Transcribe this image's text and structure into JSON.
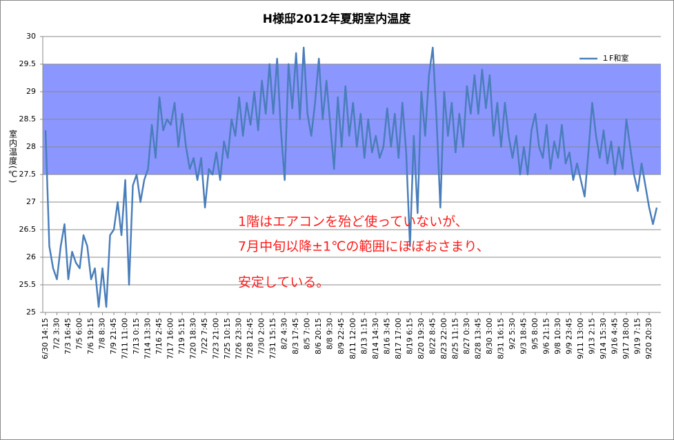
{
  "chart_data": {
    "type": "line",
    "title": "H様邸2012年夏期室内温度",
    "y_label": "室内温度(℃)",
    "annotations": [
      "1階はエアコンを殆ど使っていないが、",
      "7月中旬以降±1℃の範囲にほぼおさまり、",
      "安定している。"
    ],
    "legend_position": "top-right",
    "grid": true,
    "highlight_band": {
      "from": 27.5,
      "to": 29.5,
      "color": "#8c96ff"
    },
    "ylim": [
      25,
      30
    ],
    "yticks": [
      25,
      25.5,
      26,
      26.5,
      27,
      27.5,
      28,
      28.5,
      29,
      29.5,
      30
    ],
    "categories": [
      "6/30 14:15",
      null,
      null,
      "7/2 3:30",
      null,
      null,
      "7/3 16:45",
      null,
      null,
      "7/5 6:00",
      null,
      null,
      "7/6 19:15",
      null,
      null,
      "7/8 8:30",
      null,
      null,
      "7/9 21:45",
      null,
      null,
      "7/11 11:00",
      null,
      null,
      "7/13 0:15",
      null,
      null,
      "7/14 13:30",
      null,
      null,
      "7/16 2:45",
      null,
      null,
      "7/17 16:00",
      null,
      null,
      "7/19 5:15",
      null,
      null,
      "7/20 18:30",
      null,
      null,
      "7/22 7:45",
      null,
      null,
      "7/23 21:00",
      null,
      null,
      "7/25 10:15",
      null,
      null,
      "7/26 23:30",
      null,
      null,
      "7/28 12:45",
      null,
      null,
      "7/30 2:00",
      null,
      null,
      "7/31 15:15",
      null,
      null,
      "8/2 4:30",
      null,
      null,
      "8/3 17:45",
      null,
      null,
      "8/5 7:00",
      null,
      null,
      "8/6 20:15",
      null,
      null,
      "8/8 9:30",
      null,
      null,
      "8/9 22:45",
      null,
      null,
      "8/11 12:00",
      null,
      null,
      "8/13 1:15",
      null,
      null,
      "8/14 14:30",
      null,
      null,
      "8/16 3:45",
      null,
      null,
      "8/17 17:00",
      null,
      null,
      "8/19 6:15",
      null,
      null,
      "8/20 19:30",
      null,
      null,
      "8/22 8:45",
      null,
      null,
      "8/23 22:00",
      null,
      null,
      "8/25 11:15",
      null,
      null,
      "8/27 0:30",
      null,
      null,
      "8/28 13:45",
      null,
      null,
      "8/30 3:00",
      null,
      null,
      "8/31 16:15",
      null,
      null,
      "9/2 5:30",
      null,
      null,
      "9/3 18:45",
      null,
      null,
      "9/5 8:00",
      null,
      null,
      "9/6 21:15",
      null,
      null,
      "9/8 10:30",
      null,
      null,
      "9/9 23:45",
      null,
      null,
      "9/11 13:00",
      null,
      null,
      "9/13 2:15",
      null,
      null,
      "9/14 15:30",
      null,
      null,
      "9/16 4:45",
      null,
      null,
      "9/17 18:00",
      null,
      null,
      "9/19 7:15",
      null,
      null,
      "9/20 20:30",
      null,
      null
    ],
    "series": [
      {
        "name": "１F和室",
        "color": "#4a7ebb",
        "values": [
          28.3,
          26.2,
          25.8,
          25.6,
          26.2,
          26.6,
          25.6,
          26.1,
          25.9,
          25.8,
          26.4,
          26.2,
          25.6,
          25.8,
          25.1,
          25.8,
          25.1,
          26.4,
          26.5,
          27.0,
          26.4,
          27.4,
          25.5,
          27.3,
          27.5,
          27.0,
          27.4,
          27.6,
          28.4,
          27.8,
          28.9,
          28.3,
          28.5,
          28.4,
          28.8,
          28.0,
          28.6,
          28.0,
          27.6,
          27.8,
          27.4,
          27.8,
          26.9,
          27.6,
          27.5,
          27.9,
          27.4,
          28.1,
          27.8,
          28.5,
          28.2,
          28.9,
          28.2,
          28.8,
          28.4,
          29.0,
          28.3,
          29.2,
          28.6,
          29.5,
          28.6,
          29.6,
          28.3,
          27.4,
          29.5,
          28.7,
          29.7,
          28.5,
          29.8,
          28.6,
          28.2,
          28.8,
          29.6,
          28.5,
          29.2,
          28.4,
          27.6,
          28.9,
          28.0,
          29.1,
          28.2,
          28.8,
          28.0,
          28.6,
          27.8,
          28.5,
          27.9,
          28.2,
          27.8,
          28.0,
          28.7,
          28.0,
          28.6,
          27.8,
          28.8,
          27.9,
          26.2,
          28.2,
          26.8,
          29.0,
          28.2,
          29.3,
          29.8,
          28.5,
          26.9,
          29.0,
          28.2,
          28.8,
          27.9,
          28.6,
          28.0,
          29.1,
          28.6,
          29.3,
          28.6,
          29.4,
          28.7,
          29.3,
          28.2,
          28.8,
          28.0,
          28.8,
          28.2,
          27.8,
          28.2,
          27.5,
          28.0,
          27.5,
          28.3,
          28.6,
          28.0,
          27.8,
          28.4,
          27.6,
          28.1,
          27.8,
          28.4,
          27.7,
          27.9,
          27.4,
          27.7,
          27.4,
          27.1,
          27.9,
          28.8,
          28.2,
          27.8,
          28.3,
          27.7,
          28.1,
          27.5,
          28.0,
          27.6,
          28.5,
          28.0,
          27.5,
          27.2,
          27.7,
          27.3,
          26.9,
          26.6,
          26.9
        ]
      }
    ]
  }
}
